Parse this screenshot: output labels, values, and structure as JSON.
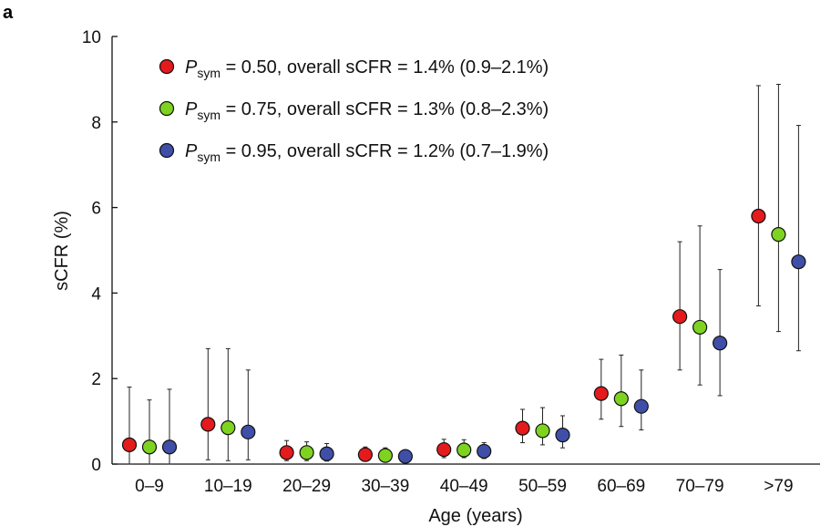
{
  "panel_label": "a",
  "chart_data": {
    "type": "scatter",
    "title": "",
    "xlabel": "Age (years)",
    "ylabel": "sCFR (%)",
    "ylim": [
      0,
      10
    ],
    "yticks": [
      "0",
      "2",
      "4",
      "6",
      "8",
      "10"
    ],
    "categories": [
      "0–9",
      "10–19",
      "20–29",
      "30–39",
      "40–49",
      "50–59",
      "60–69",
      "70–79",
      ">79"
    ],
    "legend_position": "top-left",
    "grid": false,
    "error_bars": true,
    "series": [
      {
        "legend_prefix": "P",
        "legend_sub": "sym",
        "legend_suffix": " = 0.50, overall sCFR = 1.4% (0.9–2.1%)",
        "color": "#e41a1c",
        "values": [
          0.45,
          0.93,
          0.27,
          0.22,
          0.34,
          0.84,
          1.65,
          3.45,
          5.8
        ],
        "lower": [
          0.0,
          0.1,
          0.08,
          0.1,
          0.15,
          0.5,
          1.05,
          2.2,
          3.7
        ],
        "upper": [
          1.8,
          2.7,
          0.55,
          0.4,
          0.58,
          1.28,
          2.45,
          5.2,
          8.85
        ]
      },
      {
        "legend_prefix": "P",
        "legend_sub": "sym",
        "legend_suffix": " = 0.75, overall sCFR = 1.3% (0.8–2.3%)",
        "color": "#7ed321",
        "values": [
          0.4,
          0.85,
          0.27,
          0.2,
          0.33,
          0.78,
          1.53,
          3.2,
          5.37
        ],
        "lower": [
          0.0,
          0.08,
          0.08,
          0.08,
          0.15,
          0.45,
          0.88,
          1.85,
          3.1
        ],
        "upper": [
          1.5,
          2.7,
          0.52,
          0.38,
          0.57,
          1.32,
          2.55,
          5.57,
          8.88
        ]
      },
      {
        "legend_prefix": "P",
        "legend_sub": "sym",
        "legend_suffix": " = 0.95, overall sCFR = 1.2% (0.7–1.9%)",
        "color": "#3f4fa8",
        "values": [
          0.4,
          0.75,
          0.24,
          0.18,
          0.3,
          0.68,
          1.35,
          2.83,
          4.73
        ],
        "lower": [
          0.0,
          0.1,
          0.07,
          0.07,
          0.13,
          0.38,
          0.8,
          1.6,
          2.65
        ],
        "upper": [
          1.75,
          2.2,
          0.48,
          0.33,
          0.5,
          1.13,
          2.2,
          4.55,
          7.92
        ]
      }
    ]
  }
}
